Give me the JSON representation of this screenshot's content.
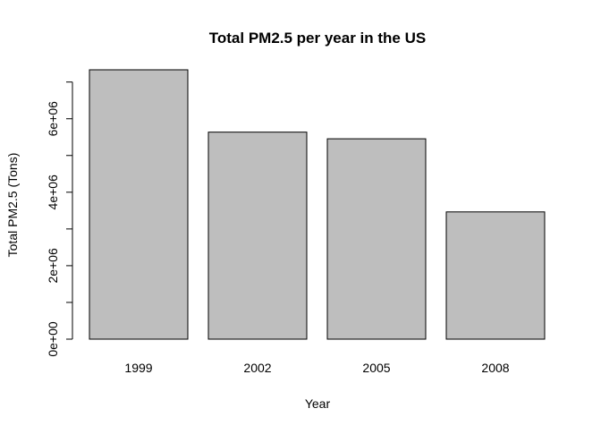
{
  "chart_data": {
    "type": "bar",
    "title": "Total PM2.5 per year in the US",
    "xlabel": "Year",
    "ylabel": "Total PM2.5 (Tons)",
    "categories": [
      "1999",
      "2002",
      "2005",
      "2008"
    ],
    "values": [
      7332967,
      5635780,
      5454703,
      3464206
    ],
    "ylim": [
      0,
      7332967
    ],
    "yticks": [
      0,
      1000000,
      2000000,
      3000000,
      4000000,
      5000000,
      6000000,
      7000000
    ],
    "ytick_labels": [
      "0e+00",
      "",
      "2e+06",
      "",
      "4e+06",
      "",
      "6e+06",
      ""
    ],
    "bar_color": "#bebebe",
    "bar_outline_color": "#000000",
    "grid": false,
    "legend": false
  }
}
